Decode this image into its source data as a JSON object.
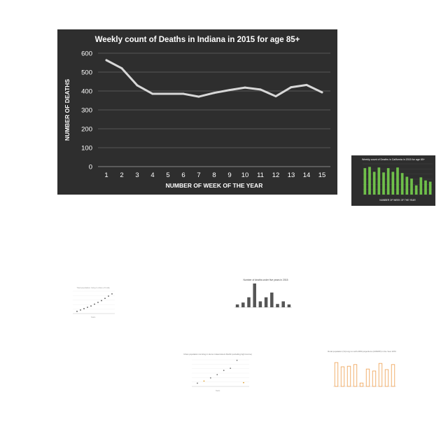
{
  "chart_data": [
    {
      "type": "line",
      "title": "Weekly count of Deaths in Indiana in 2015 for age 85+",
      "xlabel": "NUMBER OF WEEK OF THE YEAR",
      "ylabel": "NUMBER OF DEATHS",
      "x": [
        1,
        2,
        3,
        4,
        5,
        6,
        7,
        8,
        9,
        10,
        11,
        12,
        13,
        14,
        15
      ],
      "values": [
        563,
        520,
        430,
        385,
        385,
        385,
        370,
        390,
        405,
        418,
        408,
        372,
        420,
        432,
        393
      ],
      "yticks": [
        0,
        100,
        200,
        300,
        400,
        500,
        600
      ],
      "ylim": [
        0,
        600
      ],
      "grid": true,
      "colors": {
        "background": "#2e2e2e",
        "line": "#d8d8d8",
        "text": "#ffffff",
        "grid": "#555555"
      }
    },
    {
      "type": "bar",
      "title": "Weekly count of Deaths in California in 2015 for age 85+",
      "xlabel": "NUMBER OF WEEK OF THE YEAR",
      "ylabel": "",
      "values": [
        0.86,
        0.9,
        0.74,
        0.88,
        0.72,
        0.86,
        0.74,
        0.88,
        0.7,
        0.58,
        0.52,
        0.3,
        0.56,
        0.46,
        0.42
      ],
      "colors": {
        "background": "#2e2e2e",
        "bar": "#6fc04a"
      }
    },
    {
      "type": "scatter",
      "title": "Total population rising in cities of India",
      "xlabel": "Years",
      "ylabel": "",
      "values": [
        0.1,
        0.16,
        0.22,
        0.28,
        0.34,
        0.42,
        0.5,
        0.58,
        0.68,
        0.78,
        0.88
      ],
      "colors": {
        "point": "#555555"
      }
    },
    {
      "type": "bar",
      "title": "Number of deaths under five years in 2015",
      "xlabel": "",
      "ylabel": "",
      "values": [
        0.12,
        0.2,
        0.42,
        1.0,
        0.25,
        0.42,
        0.62,
        0.14,
        0.25,
        0.12
      ],
      "colors": {
        "bar": "#555555"
      }
    },
    {
      "type": "scatter",
      "title": "Urban population not living in slums in East Asia & Pacific (excluding high income)",
      "xlabel": "Years",
      "ylabel": "",
      "values": [
        0.12,
        0.2,
        0.32,
        0.44,
        0.6,
        0.68,
        0.98,
        0.14
      ],
      "colors": {
        "point": "#777777",
        "accent": "#e0a030"
      }
    },
    {
      "type": "bar",
      "title": "Rural population (%) long run with 2050 projections (UNWPP) in the Year 1970",
      "xlabel": "",
      "ylabel": "",
      "values": [
        0.85,
        0.7,
        0.72,
        0.78,
        0.12,
        0.62,
        0.55,
        0.82,
        0.6,
        0.78
      ],
      "colors": {
        "bar": "#f0a860"
      }
    }
  ]
}
